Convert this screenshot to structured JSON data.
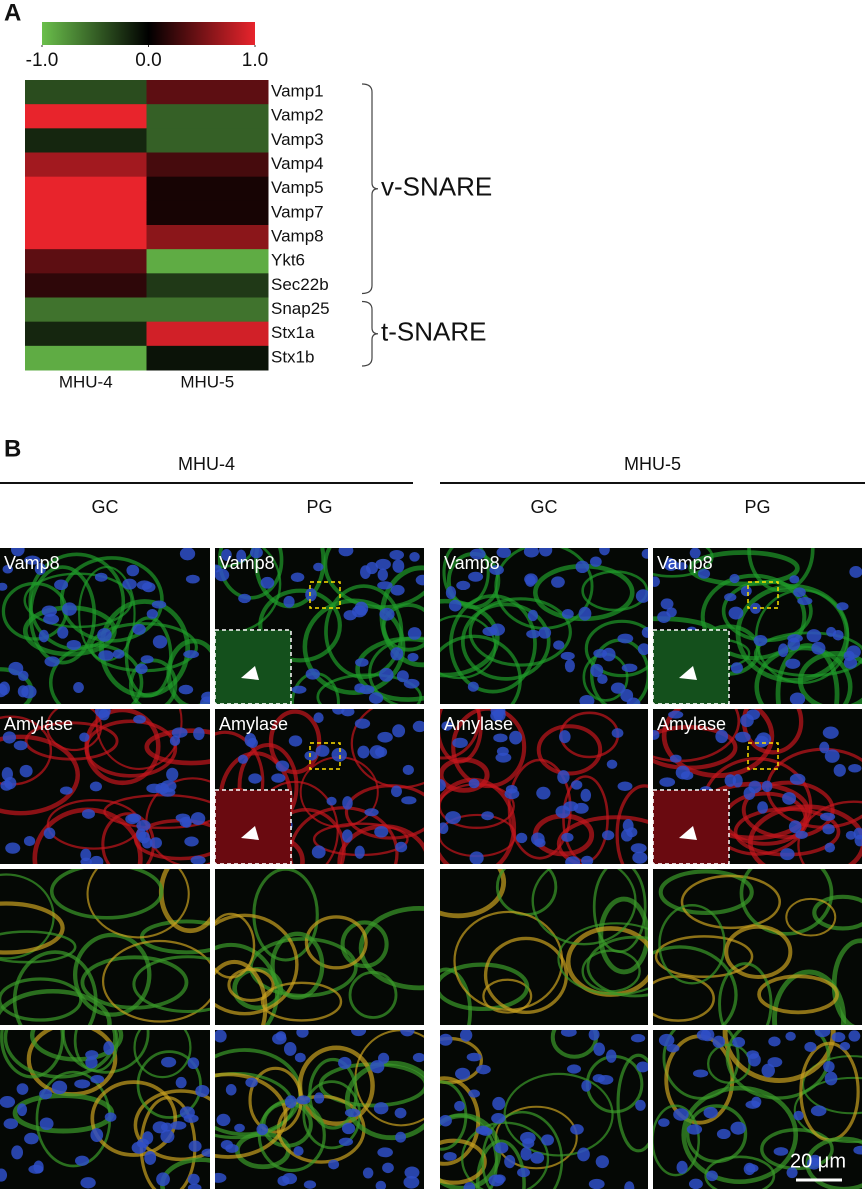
{
  "panels": {
    "a": "A",
    "b": "B"
  },
  "chart_data": {
    "type": "heatmap",
    "columns": [
      "MHU-4",
      "MHU-5"
    ],
    "rows": [
      "Vamp1",
      "Vamp2",
      "Vamp3",
      "Vamp4",
      "Vamp5",
      "Vamp7",
      "Vamp8",
      "Ykt6",
      "Sec22b",
      "Snap25",
      "Stx1a",
      "Stx1b"
    ],
    "values": [
      [
        -0.4,
        0.4
      ],
      [
        1.0,
        -0.5
      ],
      [
        -0.2,
        -0.5
      ],
      [
        0.7,
        0.3
      ],
      [
        1.0,
        0.1
      ],
      [
        1.0,
        0.1
      ],
      [
        1.0,
        0.6
      ],
      [
        0.4,
        -0.9
      ],
      [
        0.2,
        -0.3
      ],
      [
        -0.6,
        -0.6
      ],
      [
        -0.2,
        0.9
      ],
      [
        -0.9,
        -0.1
      ]
    ],
    "clim": [
      -1,
      1
    ],
    "colormap": [
      "#6abf4b",
      "#000000",
      "#e8242c"
    ],
    "colorbar_ticks": [
      {
        "value": -1,
        "label": "-1.0"
      },
      {
        "value": 0,
        "label": "0.0"
      },
      {
        "value": 1,
        "label": "1.0"
      }
    ],
    "groups": [
      {
        "label": "v-SNARE",
        "members": [
          "Vamp1",
          "Vamp2",
          "Vamp3",
          "Vamp4",
          "Vamp5",
          "Vamp7",
          "Vamp8",
          "Ykt6",
          "Sec22b"
        ]
      },
      {
        "label": "t-SNARE",
        "members": [
          "Snap25",
          "Stx1a",
          "Stx1b"
        ]
      }
    ]
  },
  "microscopy": {
    "conditions": [
      "MHU-4",
      "MHU-5"
    ],
    "regions": [
      "GC",
      "PG"
    ],
    "stains": [
      "Vamp8",
      "Amylase"
    ],
    "scale_bar": "20 μm"
  }
}
